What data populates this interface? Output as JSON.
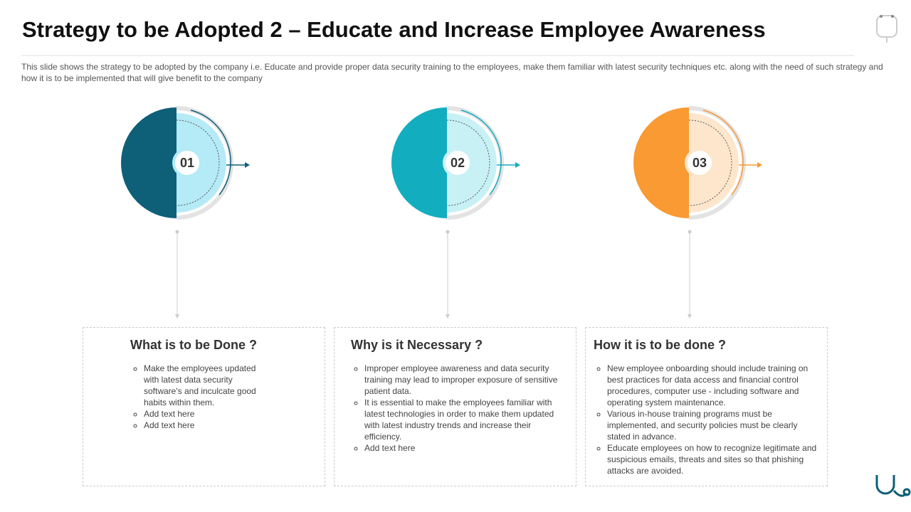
{
  "header": {
    "title": "Strategy to be Adopted 2 – Educate and Increase Employee Awareness",
    "subtitle": "This slide shows the strategy to be adopted by the company i.e. Educate and provide  proper data security training to the employees,  make them familiar  with latest security techniques etc. along with the need of such strategy and how it is to be implemented  that will give  benefit to the company"
  },
  "steps": [
    {
      "number": "01",
      "heading": "What is to be Done ?",
      "bullets": [
        "Make the employees updated with latest data security software's and inculcate good habits within them.",
        "Add text here",
        "Add text here"
      ]
    },
    {
      "number": "02",
      "heading": "Why is it Necessary ?",
      "bullets": [
        "Improper employee awareness and data security training may lead to improper exposure of sensitive patient data.",
        "It is essential to make the employees familiar with latest technologies in order to make them updated with latest industry trends and increase their efficiency.",
        "Add text here"
      ]
    },
    {
      "number": "03",
      "heading": "How it is to be done ?",
      "bullets": [
        "New employee onboarding should include training on best practices for data access and financial control procedures, computer use - including software and operating system maintenance.",
        "Various in-house training programs must be implemented, and security policies must be clearly stated in advance.",
        "Educate employees on how to recognize legitimate and suspicious emails, threats and sites so that phishing attacks are avoided."
      ]
    }
  ]
}
